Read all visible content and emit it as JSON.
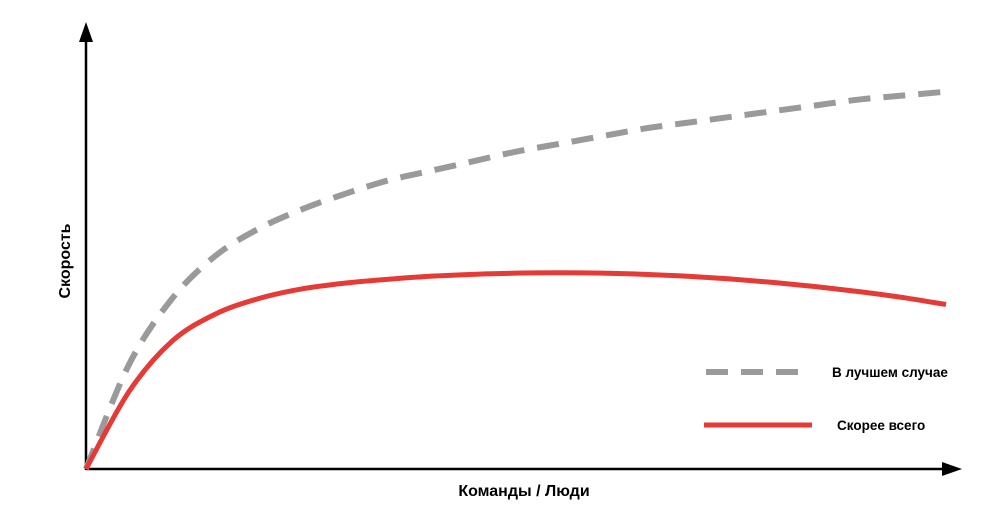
{
  "chart_data": {
    "type": "line",
    "title": "",
    "xlabel": "Команды / Люди",
    "ylabel": "Скорость",
    "xlim": [
      0,
      100
    ],
    "ylim": [
      0,
      100
    ],
    "grid": false,
    "legend_position": "bottom-right",
    "series": [
      {
        "name": "В лучшем случае",
        "color": "#9a9a9a",
        "style": "dashed",
        "x": [
          0,
          5,
          10,
          15,
          20,
          25,
          30,
          35,
          40,
          45,
          50,
          55,
          60,
          65,
          70,
          75,
          80,
          85,
          90,
          95,
          100
        ],
        "y": [
          0,
          27,
          44,
          55,
          62,
          67,
          71,
          74.5,
          77,
          79.5,
          82,
          84,
          86,
          88,
          89.5,
          91,
          92.5,
          94,
          95.5,
          96.5,
          97.5
        ]
      },
      {
        "name": "Скорее всего",
        "color": "#e63a36",
        "style": "solid",
        "x": [
          0,
          5,
          10,
          15,
          20,
          25,
          30,
          35,
          40,
          45,
          50,
          55,
          60,
          65,
          70,
          75,
          80,
          85,
          90,
          95,
          100
        ],
        "y": [
          0,
          20,
          33,
          40,
          44,
          46.5,
          48,
          49,
          49.8,
          50.3,
          50.6,
          50.7,
          50.6,
          50.3,
          49.8,
          49.1,
          48.2,
          47.1,
          45.8,
          44.3,
          42.5
        ]
      }
    ]
  }
}
